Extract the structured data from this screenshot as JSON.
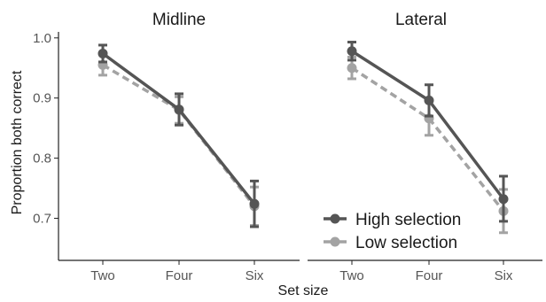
{
  "chart_data": {
    "type": "line",
    "xlabel": "Set size",
    "ylabel": "Proportion both correct",
    "categories": [
      "Two",
      "Four",
      "Six"
    ],
    "ylim": [
      0.63,
      1.01
    ],
    "yticks": [
      0.7,
      0.8,
      0.9,
      1.0
    ],
    "ytick_labels": [
      "0.7",
      "0.8",
      "0.9",
      "1.0"
    ],
    "grid": false,
    "legend_position": "bottom-right of right panel",
    "colors": {
      "high": "#555555",
      "low": "#a3a3a3",
      "axis": "#222222",
      "tick_text": "#555555"
    },
    "legend": [
      {
        "key": "high",
        "label": "High selection"
      },
      {
        "key": "low",
        "label": "Low selection"
      }
    ],
    "panels": [
      {
        "title": "Midline",
        "series": [
          {
            "key": "high",
            "name": "High selection",
            "style": "solid",
            "values": [
              0.974,
              0.881,
              0.724
            ],
            "err_low": [
              0.96,
              0.855,
              0.686
            ],
            "err_high": [
              0.988,
              0.907,
              0.762
            ]
          },
          {
            "key": "low",
            "name": "Low selection",
            "style": "dashed",
            "values": [
              0.955,
              0.88,
              0.72
            ],
            "err_low": [
              0.938,
              0.858,
              0.688
            ],
            "err_high": [
              0.972,
              0.902,
              0.752
            ]
          }
        ]
      },
      {
        "title": "Lateral",
        "series": [
          {
            "key": "high",
            "name": "High selection",
            "style": "solid",
            "values": [
              0.978,
              0.896,
              0.732
            ],
            "err_low": [
              0.963,
              0.87,
              0.695
            ],
            "err_high": [
              0.993,
              0.922,
              0.77
            ]
          },
          {
            "key": "low",
            "name": "Low selection",
            "style": "dashed",
            "values": [
              0.95,
              0.866,
              0.712
            ],
            "err_low": [
              0.932,
              0.838,
              0.676
            ],
            "err_high": [
              0.968,
              0.894,
              0.748
            ]
          }
        ]
      }
    ]
  }
}
